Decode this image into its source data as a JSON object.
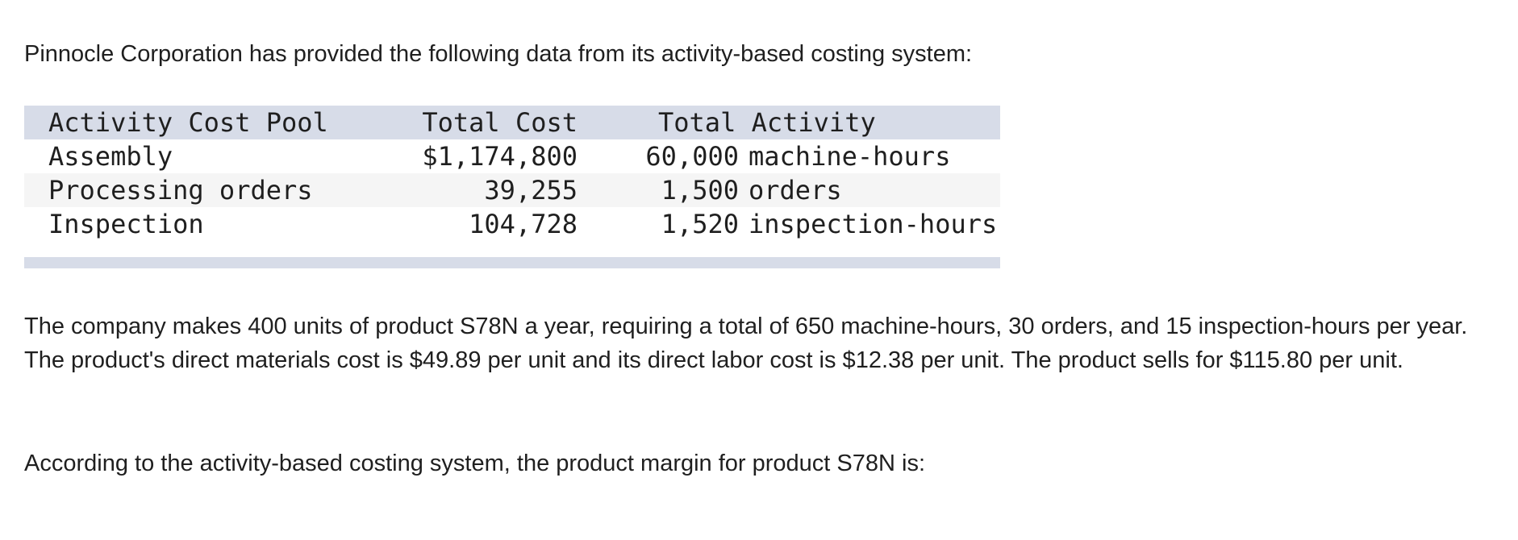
{
  "intro": "Pinnocle Corporation has provided the following data from its activity-based costing system:",
  "table": {
    "headers": {
      "pool": "Activity Cost Pool",
      "cost": "Total Cost",
      "activity": "Total Activity"
    },
    "rows": [
      {
        "pool": "Assembly",
        "cost": "$1,174,800",
        "qty": "60,000",
        "unit": "machine-hours"
      },
      {
        "pool": "Processing orders",
        "cost": "39,255",
        "qty": "1,500",
        "unit": "orders"
      },
      {
        "pool": "Inspection",
        "cost": "104,728",
        "qty": "1,520",
        "unit": "inspection-hours"
      }
    ]
  },
  "paragraph1": "The company makes 400 units of product S78N a year, requiring a total of 650 machine-hours, 30 orders, and 15 inspection-hours per year. The product's direct materials cost is $49.89 per unit and its direct labor cost is $12.38 per unit. The product sells for $115.80 per unit.",
  "paragraph2": "According to the activity-based costing system, the product margin for product S78N is:",
  "colors": {
    "header_bg": "#d7dce8",
    "alt_row_bg": "#f5f5f5"
  }
}
